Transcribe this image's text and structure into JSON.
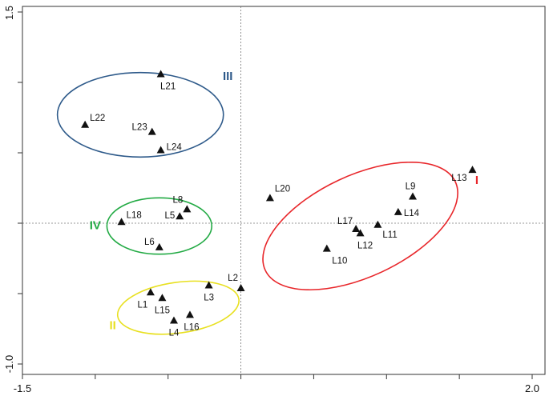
{
  "chart_data": {
    "type": "scatter",
    "title": "",
    "xlabel": "",
    "ylabel": "",
    "xlim": [
      -1.5,
      2.0
    ],
    "ylim": [
      -1.0,
      1.5
    ],
    "x_tick_labels": [
      "-1.5",
      "2.0"
    ],
    "y_tick_labels": [
      "1.5",
      "-1.0"
    ],
    "reference_lines": {
      "x": 0,
      "y": 0,
      "style": "dotted"
    },
    "grid": false,
    "points": [
      {
        "label": "L1",
        "x": -0.62,
        "y": -0.49
      },
      {
        "label": "L2",
        "x": 0.0,
        "y": -0.46
      },
      {
        "label": "L3",
        "x": -0.22,
        "y": -0.44
      },
      {
        "label": "L4",
        "x": -0.46,
        "y": -0.69
      },
      {
        "label": "L5",
        "x": -0.42,
        "y": 0.05
      },
      {
        "label": "L6",
        "x": -0.56,
        "y": -0.17
      },
      {
        "label": "L8",
        "x": -0.37,
        "y": 0.1
      },
      {
        "label": "L9",
        "x": 1.18,
        "y": 0.19
      },
      {
        "label": "L10",
        "x": 0.59,
        "y": -0.18
      },
      {
        "label": "L11",
        "x": 0.94,
        "y": -0.01
      },
      {
        "label": "L12",
        "x": 0.82,
        "y": -0.07
      },
      {
        "label": "L13",
        "x": 1.59,
        "y": 0.38
      },
      {
        "label": "L14",
        "x": 1.08,
        "y": 0.08
      },
      {
        "label": "L15",
        "x": -0.54,
        "y": -0.53
      },
      {
        "label": "L16",
        "x": -0.35,
        "y": -0.65
      },
      {
        "label": "L17",
        "x": 0.79,
        "y": -0.04
      },
      {
        "label": "L18",
        "x": -0.82,
        "y": 0.01
      },
      {
        "label": "L20",
        "x": 0.2,
        "y": 0.18
      },
      {
        "label": "L21",
        "x": -0.55,
        "y": 1.06
      },
      {
        "label": "L22",
        "x": -1.07,
        "y": 0.7
      },
      {
        "label": "L23",
        "x": -0.61,
        "y": 0.65
      },
      {
        "label": "L24",
        "x": -0.55,
        "y": 0.52
      }
    ],
    "groups": [
      {
        "label": "I",
        "color": "#e8262a",
        "cx": 0.82,
        "cy": -0.02,
        "rx": 0.72,
        "ry": 0.36,
        "rotation_deg": -25
      },
      {
        "label": "II",
        "color": "#e8e020",
        "cx": -0.43,
        "cy": -0.6,
        "rx": 0.42,
        "ry": 0.18,
        "rotation_deg": -8
      },
      {
        "label": "III",
        "color": "#2e5a8a",
        "cx": -0.69,
        "cy": 0.77,
        "rx": 0.57,
        "ry": 0.3,
        "rotation_deg": 0
      },
      {
        "label": "IV",
        "color": "#22aa44",
        "cx": -0.56,
        "cy": -0.02,
        "rx": 0.36,
        "ry": 0.2,
        "rotation_deg": 0
      }
    ]
  }
}
